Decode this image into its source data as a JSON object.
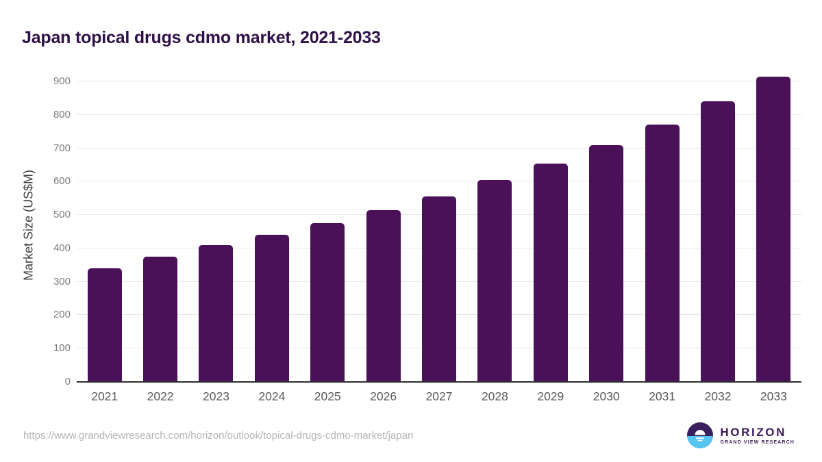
{
  "title": "Japan topical drugs cdmo market, 2021-2033",
  "chart_data": {
    "type": "bar",
    "title": "Japan topical drugs cdmo market, 2021-2033",
    "categories": [
      "2021",
      "2022",
      "2023",
      "2024",
      "2025",
      "2026",
      "2027",
      "2028",
      "2029",
      "2030",
      "2031",
      "2032",
      "2033"
    ],
    "values": [
      340,
      375,
      410,
      440,
      475,
      515,
      555,
      605,
      655,
      710,
      770,
      840,
      915
    ],
    "xlabel": "",
    "ylabel": "Market Size (US$M)",
    "ylim": [
      0,
      940
    ],
    "yticks": [
      0,
      100,
      200,
      300,
      400,
      500,
      600,
      700,
      800,
      900
    ],
    "grid": true,
    "legend": "none",
    "bar_color": "#4a1159"
  },
  "footer": {
    "source_url": "https://www.grandviewresearch.com/horizon/outlook/topical-drugs-cdmo-market/japan",
    "logo": {
      "brand": "HORIZON",
      "sub_brand": "GRAND VIEW RESEARCH",
      "circle_top_color": "#3a1f5d",
      "circle_bottom_color": "#56c5f2",
      "text_color": "#3b1a5a"
    }
  }
}
